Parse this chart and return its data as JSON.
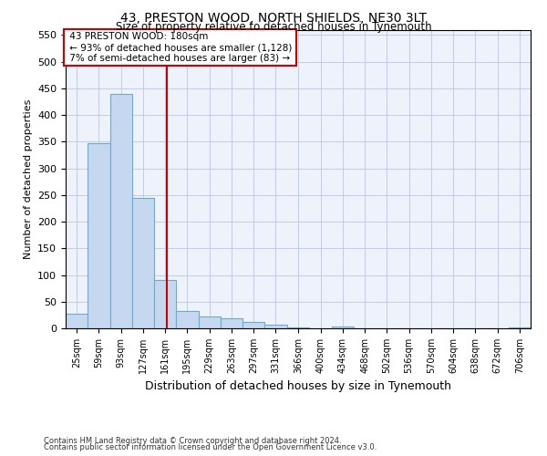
{
  "title": "43, PRESTON WOOD, NORTH SHIELDS, NE30 3LT",
  "subtitle": "Size of property relative to detached houses in Tynemouth",
  "xlabel": "Distribution of detached houses by size in Tynemouth",
  "ylabel": "Number of detached properties",
  "property_label": "43 PRESTON WOOD: 180sqm",
  "annotation_line2": "← 93% of detached houses are smaller (1,128)",
  "annotation_line3": "7% of semi-detached houses are larger (83) →",
  "bins": [
    25,
    59,
    93,
    127,
    161,
    195,
    229,
    263,
    297,
    331,
    366,
    400,
    434,
    468,
    502,
    536,
    570,
    604,
    638,
    672,
    706
  ],
  "counts": [
    28,
    347,
    440,
    245,
    90,
    32,
    22,
    18,
    12,
    6,
    1,
    0,
    3,
    0,
    0,
    0,
    0,
    0,
    0,
    0,
    1
  ],
  "bar_color": "#c5d8f0",
  "bar_edge_color": "#6aaad4",
  "vline_color": "#cc0000",
  "vline_x": 180,
  "box_color": "#cc0000",
  "background_color": "#eef2fb",
  "footer_line1": "Contains HM Land Registry data © Crown copyright and database right 2024.",
  "footer_line2": "Contains public sector information licensed under the Open Government Licence v3.0.",
  "ylim": [
    0,
    560
  ],
  "yticks": [
    0,
    50,
    100,
    150,
    200,
    250,
    300,
    350,
    400,
    450,
    500,
    550
  ],
  "bin_width": 34
}
